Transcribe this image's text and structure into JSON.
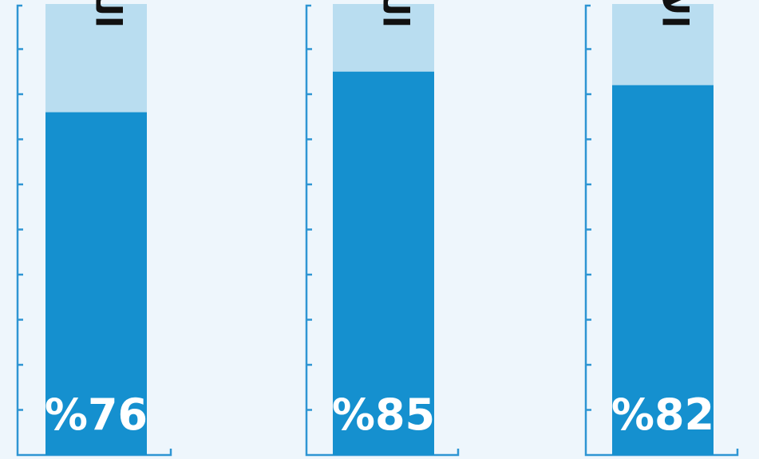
{
  "chart_data": {
    "type": "bar",
    "categories": [
      "الريف",
      "الحضر",
      "الإجمالي"
    ],
    "values": [
      76,
      85,
      82
    ],
    "value_labels": [
      "%76",
      "%85",
      "%82"
    ],
    "ylim": [
      0,
      100
    ],
    "grid": false,
    "legend": "none"
  },
  "colors": {
    "background": "#eef6fc",
    "bar_fill": "#1590cf",
    "bar_track": "#b9ddf0",
    "axis": "#2e95d3",
    "value_text": "#ffffff",
    "category_text": "#111111"
  }
}
